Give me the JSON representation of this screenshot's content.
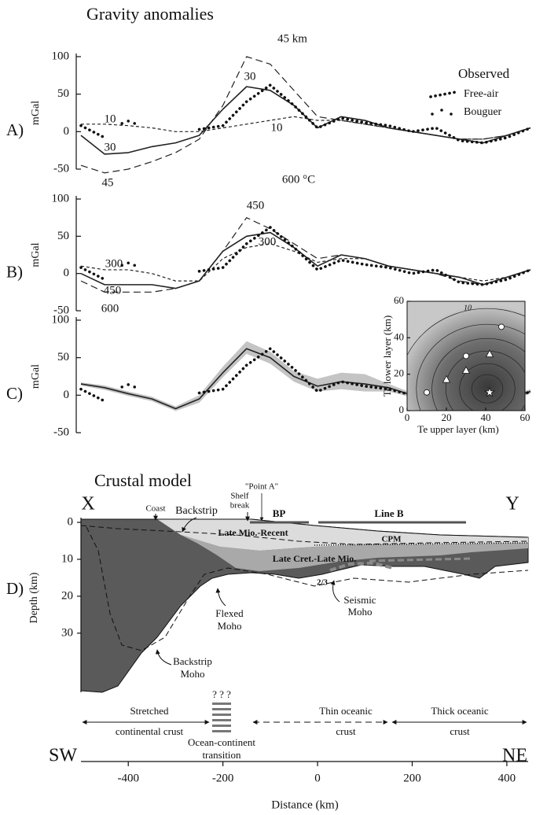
{
  "chart_data": [
    {
      "type": "line",
      "title": "Gravity anomalies",
      "panel_label": "A)",
      "ylabel": "mGal",
      "x": [
        -500,
        -450,
        -400,
        -350,
        -300,
        -250,
        -200,
        -150,
        -100,
        -50,
        0,
        50,
        100,
        150,
        200,
        250,
        300,
        350,
        400,
        450
      ],
      "xlim": [
        -500,
        445
      ],
      "ylim": [
        -50,
        100
      ],
      "yticks": [
        -50,
        0,
        50,
        100
      ],
      "legend_title": "Observed",
      "series": [
        {
          "style": "long-dash",
          "color": "#222222",
          "values": [
            -45,
            -55,
            -50,
            -40,
            -28,
            -10,
            35,
            100,
            90,
            55,
            20,
            15,
            10,
            5,
            0,
            -5,
            -10,
            -10,
            -5,
            5
          ]
        },
        {
          "style": "solid",
          "color": "#222222",
          "values": [
            -5,
            -30,
            -28,
            -20,
            -15,
            -5,
            30,
            60,
            55,
            35,
            5,
            20,
            15,
            5,
            0,
            -5,
            -10,
            -15,
            -5,
            5
          ]
        },
        {
          "style": "short-dash",
          "color": "#222222",
          "values": [
            10,
            10,
            8,
            5,
            0,
            0,
            5,
            10,
            15,
            20,
            15,
            15,
            10,
            5,
            0,
            -5,
            -10,
            -10,
            -5,
            5
          ]
        },
        {
          "name": "Free-air",
          "style": "dotted",
          "color": "#111111",
          "values": [
            8,
            -8,
            null,
            null,
            null,
            3,
            8,
            40,
            62,
            35,
            5,
            18,
            12,
            8,
            0,
            5,
            -12,
            -15,
            -8,
            5
          ]
        },
        {
          "name": "Bouguer",
          "style": "sparse-dots",
          "color": "#111111",
          "values": [
            null,
            null,
            12,
            null,
            null,
            null,
            null,
            null,
            null,
            null,
            null,
            null,
            null,
            null,
            null,
            null,
            null,
            null,
            null,
            null
          ]
        }
      ],
      "annotations": [
        "45 km",
        "30",
        "10",
        "10",
        "30",
        "45"
      ]
    },
    {
      "type": "line",
      "panel_label": "B)",
      "ylabel": "mGal",
      "x": [
        -500,
        -450,
        -400,
        -350,
        -300,
        -250,
        -200,
        -150,
        -100,
        -50,
        0,
        50,
        100,
        150,
        200,
        250,
        300,
        350,
        400,
        450
      ],
      "xlim": [
        -500,
        445
      ],
      "ylim": [
        -50,
        100
      ],
      "yticks": [
        -50,
        0,
        50,
        100
      ],
      "series": [
        {
          "style": "long-dash",
          "color": "#222222",
          "values": [
            -10,
            -25,
            -25,
            -25,
            -20,
            -10,
            30,
            75,
            60,
            40,
            20,
            25,
            20,
            10,
            5,
            0,
            -10,
            -15,
            -5,
            5
          ]
        },
        {
          "style": "solid",
          "color": "#222222",
          "values": [
            0,
            -15,
            -15,
            -15,
            -20,
            -10,
            30,
            50,
            55,
            35,
            10,
            25,
            20,
            10,
            5,
            0,
            -5,
            -15,
            -5,
            5
          ]
        },
        {
          "style": "short-dash",
          "color": "#222222",
          "values": [
            10,
            5,
            5,
            0,
            -10,
            -10,
            20,
            35,
            40,
            30,
            15,
            20,
            20,
            10,
            5,
            0,
            -5,
            -10,
            -5,
            5
          ]
        },
        {
          "style": "dotted",
          "color": "#111111",
          "values": [
            8,
            -8,
            null,
            null,
            null,
            3,
            8,
            40,
            62,
            35,
            5,
            18,
            12,
            8,
            0,
            5,
            -12,
            -15,
            -8,
            5
          ]
        },
        {
          "style": "sparse-dots",
          "color": "#111111",
          "values": [
            null,
            null,
            12,
            null,
            null,
            null,
            null,
            null,
            null,
            null,
            null,
            null,
            null,
            null,
            null,
            null,
            null,
            null,
            null,
            null
          ]
        }
      ],
      "annotations": [
        "600 °C",
        "450",
        "300",
        "300",
        "450",
        "600"
      ]
    },
    {
      "type": "line",
      "panel_label": "C)",
      "ylabel": "mGal",
      "x": [
        -500,
        -450,
        -400,
        -350,
        -300,
        -250,
        -200,
        -150,
        -100,
        -50,
        0,
        50,
        100,
        150,
        200,
        250,
        300,
        350,
        400,
        450
      ],
      "xlim": [
        -500,
        445
      ],
      "ylim": [
        -50,
        100
      ],
      "yticks": [
        -50,
        0,
        50,
        100
      ],
      "series": [
        {
          "style": "solid",
          "color": "#222222",
          "band_color": "#c4c4c4",
          "values": [
            15,
            10,
            2,
            -5,
            -18,
            -5,
            30,
            62,
            50,
            25,
            12,
            18,
            15,
            10,
            0,
            -5,
            -10,
            -15,
            -5,
            5
          ],
          "band_upper": [
            17,
            13,
            5,
            -2,
            -15,
            0,
            38,
            72,
            58,
            32,
            22,
            30,
            28,
            15,
            3,
            -2,
            -7,
            -12,
            -2,
            8
          ],
          "band_lower": [
            13,
            7,
            -1,
            -8,
            -21,
            -10,
            24,
            55,
            42,
            18,
            5,
            8,
            5,
            5,
            -3,
            -8,
            -13,
            -18,
            -8,
            2
          ]
        },
        {
          "style": "dotted",
          "color": "#111111",
          "values": [
            8,
            -8,
            null,
            null,
            null,
            3,
            8,
            40,
            62,
            35,
            5,
            18,
            12,
            8,
            0,
            5,
            -12,
            -15,
            -8,
            5
          ]
        },
        {
          "style": "sparse-dots",
          "color": "#111111",
          "values": [
            null,
            null,
            12,
            null,
            null,
            null,
            null,
            null,
            null,
            null,
            null,
            null,
            null,
            null,
            null,
            null,
            null,
            null,
            null,
            null
          ]
        }
      ]
    },
    {
      "type": "scatter",
      "xlabel": "Te upper layer (km)",
      "ylabel": "Te lower layer (km)",
      "xlim": [
        0,
        60
      ],
      "ylim": [
        0,
        60
      ],
      "xticks": [
        0,
        20,
        40,
        60
      ],
      "yticks": [
        0,
        20,
        40,
        60
      ],
      "contour_label": "10",
      "series": [
        {
          "marker": "circle",
          "color": "#ffffff",
          "x": [
            10,
            30,
            48
          ],
          "values": [
            10,
            30,
            46
          ]
        },
        {
          "marker": "triangle",
          "color": "#ffffff",
          "x": [
            20,
            30,
            42
          ],
          "values": [
            17,
            22,
            31
          ]
        },
        {
          "marker": "star",
          "color": "#ffffff",
          "x": [
            42
          ],
          "values": [
            10
          ]
        }
      ]
    },
    {
      "type": "cross-section",
      "title": "Crustal model",
      "panel_label": "D)",
      "ylabel": "Depth (km)",
      "ylim": [
        0,
        46
      ],
      "yticks": [
        0,
        10,
        20,
        30
      ],
      "xlim": [
        -500,
        445
      ],
      "xticks": [
        -400,
        -200,
        0,
        200,
        400
      ],
      "xlabel": "Distance (km)",
      "labels": {
        "x_end": "X",
        "y_end": "Y",
        "sw": "SW",
        "ne": "NE",
        "coast": "Coast",
        "backstrip": "Backstrip",
        "shelf_break": [
          "Shelf",
          "break"
        ],
        "point_a": "\"Point A\"",
        "bp": "BP",
        "line_b": "Line B",
        "late_mio": "Late Mio.-Recent",
        "cpm": "CPM",
        "late_cret": "Late Cret.-Late Mio.",
        "two_thirds": "2/3",
        "seismic_moho": [
          "Seismic",
          "Moho"
        ],
        "flexed_moho": [
          "Flexed",
          "Moho"
        ],
        "backstrip_moho": [
          "Backstrip",
          "Moho"
        ],
        "unknown": "? ? ?",
        "stretched": [
          "Stretched",
          "continental crust"
        ],
        "oct": [
          "Ocean-continent",
          "transition"
        ],
        "thin": [
          "Thin oceanic",
          "crust"
        ],
        "thick": [
          "Thick oceanic",
          "crust"
        ]
      }
    }
  ]
}
